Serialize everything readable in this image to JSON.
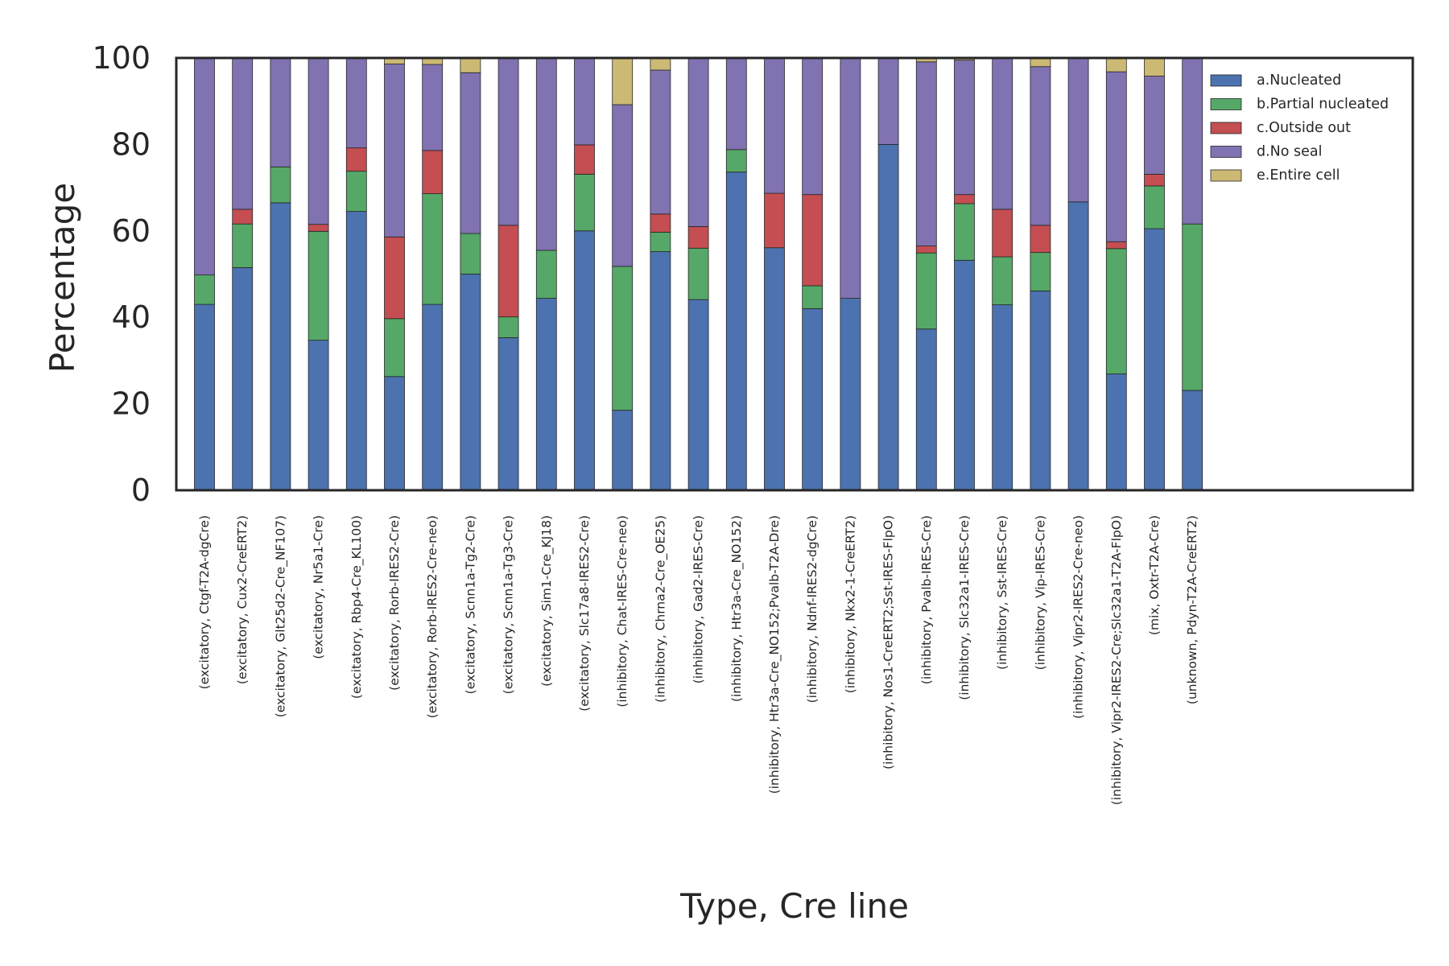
{
  "chart_data": {
    "type": "bar",
    "stacked": true,
    "xlabel": "Type, Cre line",
    "ylabel": "Percentage",
    "ylim": [
      0,
      100
    ],
    "yticks": [
      0,
      20,
      40,
      60,
      80,
      100
    ],
    "grid": false,
    "legend_position": "top-right",
    "categories": [
      "(excitatory, Ctgf-T2A-dgCre)",
      "(excitatory, Cux2-CreERT2)",
      "(excitatory, Glt25d2-Cre_NF107)",
      "(excitatory, Nr5a1-Cre)",
      "(excitatory, Rbp4-Cre_KL100)",
      "(excitatory, Rorb-IRES2-Cre)",
      "(excitatory, Rorb-IRES2-Cre-neo)",
      "(excitatory, Scnn1a-Tg2-Cre)",
      "(excitatory, Scnn1a-Tg3-Cre)",
      "(excitatory, Sim1-Cre_KJ18)",
      "(excitatory, Slc17a8-IRES2-Cre)",
      "(inhibitory, Chat-IRES-Cre-neo)",
      "(inhibitory, Chrna2-Cre_OE25)",
      "(inhibitory, Gad2-IRES-Cre)",
      "(inhibitory, Htr3a-Cre_NO152)",
      "(inhibitory, Htr3a-Cre_NO152;Pvalb-T2A-Dre)",
      "(inhibitory, Ndnf-IRES2-dgCre)",
      "(inhibitory, Nkx2-1-CreERT2)",
      "(inhibitory, Nos1-CreERT2;Sst-IRES-FlpO)",
      "(inhibitory, Pvalb-IRES-Cre)",
      "(inhibitory, Slc32a1-IRES-Cre)",
      "(inhibitory, Sst-IRES-Cre)",
      "(inhibitory, Vip-IRES-Cre)",
      "(inhibitory, Vipr2-IRES2-Cre-neo)",
      "(inhibitory, Vipr2-IRES2-Cre;Slc32a1-T2A-FlpO)",
      "(mix, Oxtr-T2A-Cre)",
      "(unknown, Pdyn-T2A-CreERT2)"
    ],
    "series": [
      {
        "name": "a.Nucleated",
        "color": "#4c72b0",
        "values": [
          43,
          51.5,
          66.5,
          34.7,
          64.5,
          26.3,
          43,
          50,
          35.3,
          44.4,
          60,
          18.5,
          55.2,
          44.1,
          73.6,
          56.1,
          42,
          44.4,
          80,
          37.3,
          53.2,
          42.9,
          46.1,
          66.7,
          26.9,
          60.5,
          23.1
        ]
      },
      {
        "name": "b.Partial nucleated",
        "color": "#55a868",
        "values": [
          6.8,
          10.1,
          8.3,
          25.2,
          9.3,
          13.4,
          25.6,
          9.4,
          4.8,
          11.1,
          13.1,
          33.3,
          4.5,
          11.9,
          5.2,
          0,
          5.3,
          0,
          0,
          17.6,
          13.1,
          11.1,
          8.9,
          0,
          29,
          9.9,
          38.5
        ]
      },
      {
        "name": "c.Outside out",
        "color": "#c44e52",
        "values": [
          0,
          3.4,
          0,
          1.6,
          5.4,
          18.9,
          10,
          0,
          21.2,
          0,
          6.8,
          0,
          4.2,
          5,
          0,
          12.6,
          21.1,
          0,
          0,
          1.6,
          2.1,
          11,
          6.3,
          0,
          1.6,
          2.7,
          0
        ]
      },
      {
        "name": "d.No seal",
        "color": "#8172b2",
        "values": [
          50.2,
          35,
          25.2,
          38.5,
          20.8,
          40,
          19.9,
          37.2,
          38.7,
          44.5,
          20.1,
          37.4,
          33.3,
          39,
          21.2,
          31.3,
          31.6,
          55.6,
          20,
          42.6,
          31.1,
          35,
          36.7,
          33.3,
          39.3,
          22.7,
          38.4
        ]
      },
      {
        "name": "e.Entire cell",
        "color": "#ccb974",
        "values": [
          0,
          0,
          0,
          0,
          0,
          1.4,
          1.5,
          3.4,
          0,
          0,
          0,
          10.8,
          2.8,
          0,
          0,
          0,
          0,
          0,
          0,
          0.9,
          0.5,
          0,
          2,
          0,
          3.2,
          4.2,
          0
        ]
      }
    ]
  }
}
